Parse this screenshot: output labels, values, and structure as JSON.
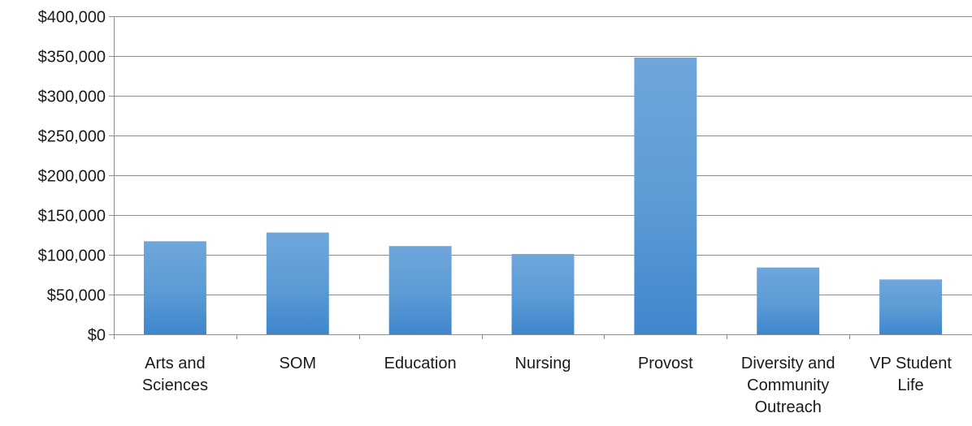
{
  "chart_data": {
    "type": "bar",
    "categories": [
      [
        "Arts and",
        "Sciences"
      ],
      [
        "SOM"
      ],
      [
        "Education"
      ],
      [
        "Nursing"
      ],
      [
        "Provost"
      ],
      [
        "Diversity and",
        "Community",
        "Outreach"
      ],
      [
        "VP Student",
        "Life"
      ]
    ],
    "values": [
      117000,
      128000,
      111000,
      101000,
      348000,
      84000,
      69000
    ],
    "ylim": [
      0,
      400000
    ],
    "yticks": [
      0,
      50000,
      100000,
      150000,
      200000,
      250000,
      300000,
      350000,
      400000
    ],
    "ytick_labels": [
      "$0",
      "$50,000",
      "$100,000",
      "$150,000",
      "$200,000",
      "$250,000",
      "$300,000",
      "$350,000",
      "$400,000"
    ],
    "title": "",
    "xlabel": "",
    "ylabel": "",
    "grid": true,
    "legend": false,
    "colors": {
      "bar_top": "#6fa6dc",
      "bar_mid": "#5b9bd5",
      "bar_bottom": "#3f86cc"
    }
  }
}
